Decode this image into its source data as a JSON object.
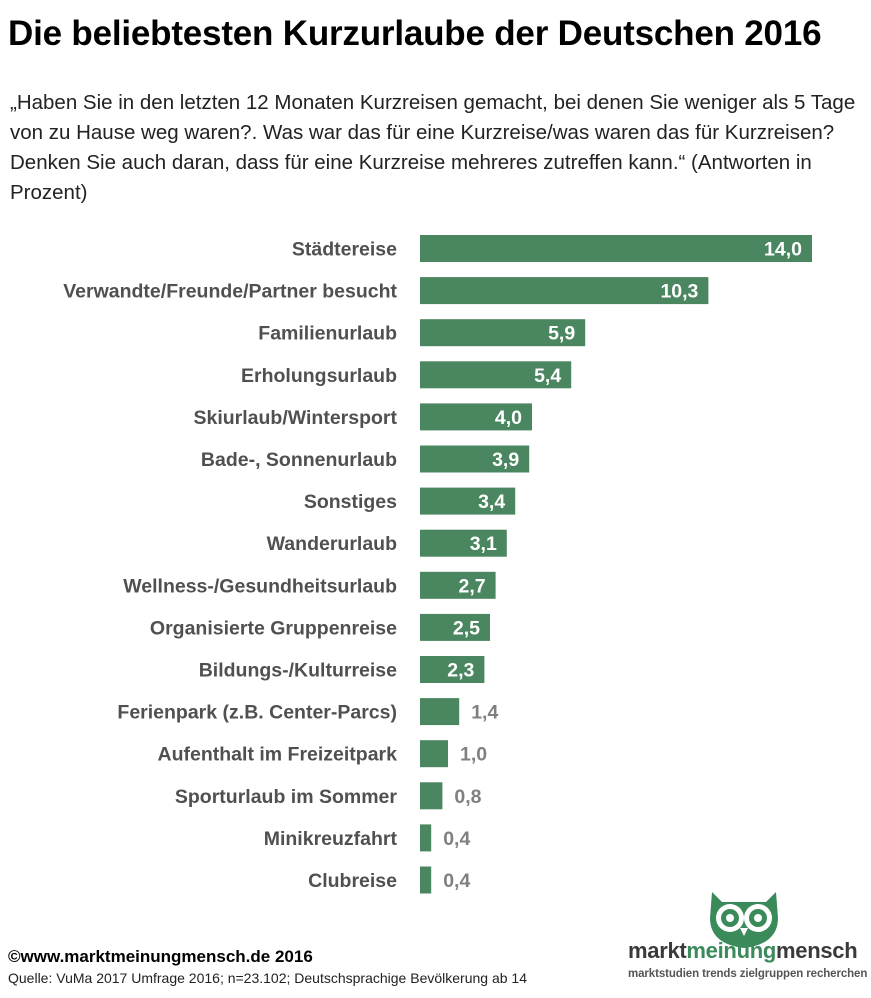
{
  "title": "Die beliebtesten Kurzurlaube der Deutschen 2016",
  "subtitle": "„Haben Sie in den letzten 12 Monaten Kurzreisen gemacht, bei denen Sie weniger als 5 Tage von zu Hause weg waren?. Was war das für eine Kurzreise/was waren das für Kurzreisen? Denken Sie auch daran, dass für eine Kurzreise mehreres zutreffen kann.“ (Antworten in Prozent)",
  "colors": {
    "bar": "#4a865f",
    "label": "#505050",
    "value_outside": "#808080"
  },
  "chart_data": {
    "type": "bar",
    "orientation": "horizontal",
    "categories": [
      "Städtereise",
      "Verwandte/Freunde/Partner besucht",
      "Familienurlaub",
      "Erholungsurlaub",
      "Skiurlaub/Wintersport",
      "Bade-, Sonnenurlaub",
      "Sonstiges",
      "Wanderurlaub",
      "Wellness-/Gesundheitsurlaub",
      "Organisierte Gruppenreise",
      "Bildungs-/Kulturreise",
      "Ferienpark (z.B. Center-Parcs)",
      "Aufenthalt im Freizeitpark",
      "Sporturlaub im Sommer",
      "Minikreuzfahrt",
      "Clubreise"
    ],
    "values": [
      14.0,
      10.3,
      5.9,
      5.4,
      4.0,
      3.9,
      3.4,
      3.1,
      2.7,
      2.5,
      2.3,
      1.4,
      1.0,
      0.8,
      0.4,
      0.4
    ],
    "value_labels": [
      "14,0",
      "10,3",
      "5,9",
      "5,4",
      "4,0",
      "3,9",
      "3,4",
      "3,1",
      "2,7",
      "2,5",
      "2,3",
      "1,4",
      "1,0",
      "0,8",
      "0,4",
      "0,4"
    ],
    "xlim": [
      0,
      14.0
    ],
    "grid": false,
    "legend": "none"
  },
  "footer": {
    "copyright": "©www.marktmeinungmensch.de 2016",
    "source": "Quelle: VuMa 2017 Umfrage 2016; n=23.102; Deutschsprachige Bevölkerung ab 14"
  },
  "logo": {
    "word1": "markt",
    "word2": "meinung",
    "word3": "mensch",
    "tagline": "marktstudien trends zielgruppen recherchen",
    "icon": "owl-icon"
  }
}
